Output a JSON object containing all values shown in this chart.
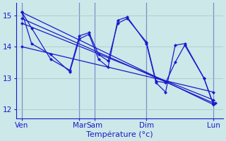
{
  "background_color": "#cce8e8",
  "grid_color": "#a0c8c8",
  "line_color": "#1a1acc",
  "marker": "D",
  "marker_size": 2.5,
  "xlabel": "Température (°c)",
  "xlabel_color": "#1a1acc",
  "xlabel_fontsize": 8,
  "tick_color": "#1a1acc",
  "tick_fontsize": 7.5,
  "ylim": [
    11.7,
    15.4
  ],
  "yticks": [
    12,
    13,
    14,
    15
  ],
  "lw": 0.9,
  "trend_lines": [
    {
      "x": [
        0,
        10
      ],
      "y": [
        15.1,
        12.15
      ]
    },
    {
      "x": [
        0,
        10
      ],
      "y": [
        14.9,
        12.2
      ]
    },
    {
      "x": [
        0,
        10
      ],
      "y": [
        14.75,
        12.3
      ]
    },
    {
      "x": [
        0,
        10
      ],
      "y": [
        14.0,
        12.55
      ]
    }
  ],
  "wave1_x": [
    0,
    0.5,
    1.5,
    2.5,
    3.0,
    3.5,
    4.0,
    4.5,
    5.0,
    5.5,
    6.5,
    7.0,
    7.5,
    8.0,
    8.5,
    9.5,
    10.0
  ],
  "wave1_y": [
    15.1,
    14.6,
    13.6,
    13.25,
    14.35,
    14.45,
    13.75,
    13.55,
    14.75,
    14.9,
    14.15,
    12.9,
    12.85,
    13.5,
    14.05,
    13.0,
    12.15
  ],
  "wave2_x": [
    0,
    0.5,
    1.5,
    2.5,
    3.0,
    3.5,
    4.0,
    4.5,
    5.0,
    5.5,
    6.5,
    7.0,
    7.5,
    8.0,
    8.5,
    9.5,
    10.0,
    10.1
  ],
  "wave2_y": [
    15.1,
    14.1,
    13.75,
    13.2,
    14.25,
    14.4,
    13.6,
    13.35,
    14.85,
    14.95,
    14.1,
    12.85,
    12.55,
    14.05,
    14.1,
    13.0,
    12.15,
    12.2
  ],
  "xtick_positions": [
    0,
    3.0,
    3.8,
    6.5,
    10.0
  ],
  "xtick_labels": [
    "Ven",
    "Mar",
    "Sam",
    "Dim",
    "Lun"
  ],
  "xlim": [
    -0.3,
    10.5
  ]
}
